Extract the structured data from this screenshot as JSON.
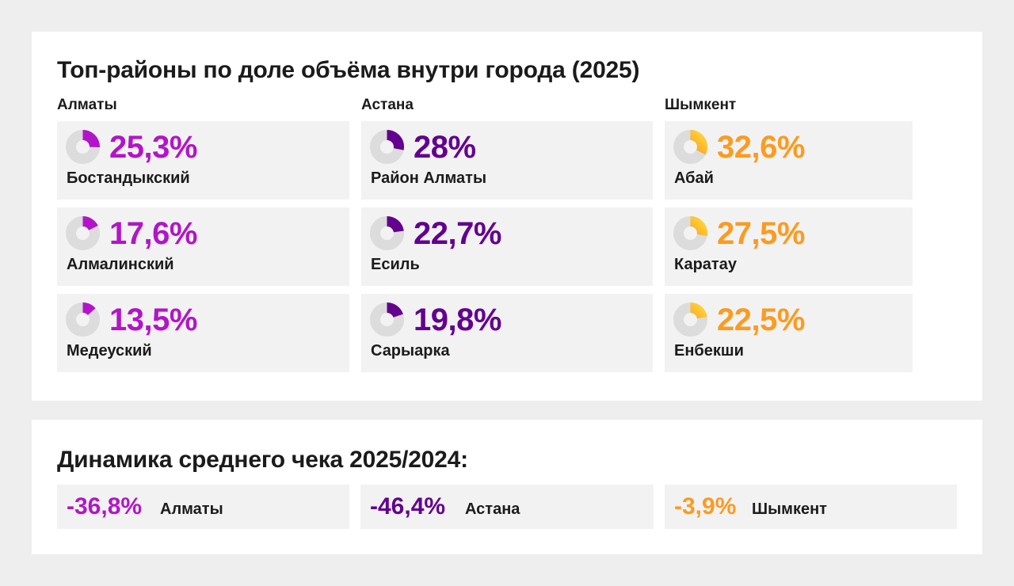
{
  "colors": {
    "almaty": "#b215c8",
    "astana": "#63008f",
    "shymkent": "#fb9b20",
    "shymkent_gradient_start": "#f07a0a",
    "shymkent_gradient_end": "#ffd13a",
    "ring_bg": "#dcdcdc"
  },
  "top_panel": {
    "title": "Топ-районы по доле объёма внутри города (2025)",
    "cities": [
      {
        "name": "Алматы",
        "color_key": "almaty",
        "districts": [
          {
            "share_label": "25,3%",
            "share": 25.3,
            "name": "Бостандыкский"
          },
          {
            "share_label": "17,6%",
            "share": 17.6,
            "name": "Алмалинский"
          },
          {
            "share_label": "13,5%",
            "share": 13.5,
            "name": "Медеуский"
          }
        ]
      },
      {
        "name": "Астана",
        "color_key": "astana",
        "districts": [
          {
            "share_label": "28%",
            "share": 28,
            "name": "Район Алматы"
          },
          {
            "share_label": "22,7%",
            "share": 22.7,
            "name": "Есиль"
          },
          {
            "share_label": "19,8%",
            "share": 19.8,
            "name": "Сарыарка"
          }
        ]
      },
      {
        "name": "Шымкент",
        "color_key": "shymkent",
        "districts": [
          {
            "share_label": "32,6%",
            "share": 32.6,
            "name": "Абай"
          },
          {
            "share_label": "27,5%",
            "share": 27.5,
            "name": "Каратау"
          },
          {
            "share_label": "22,5%",
            "share": 22.5,
            "name": "Енбекши"
          }
        ]
      }
    ]
  },
  "bottom_panel": {
    "title": "Динамика среднего чека 2025/2024:",
    "items": [
      {
        "value": "-36,8%",
        "city": "Алматы",
        "color_key": "almaty"
      },
      {
        "value": "-46,4%",
        "city": "Астана",
        "color_key": "astana"
      },
      {
        "value": "-3,9%",
        "city": "Шымкент",
        "color_key": "shymkent"
      }
    ]
  }
}
